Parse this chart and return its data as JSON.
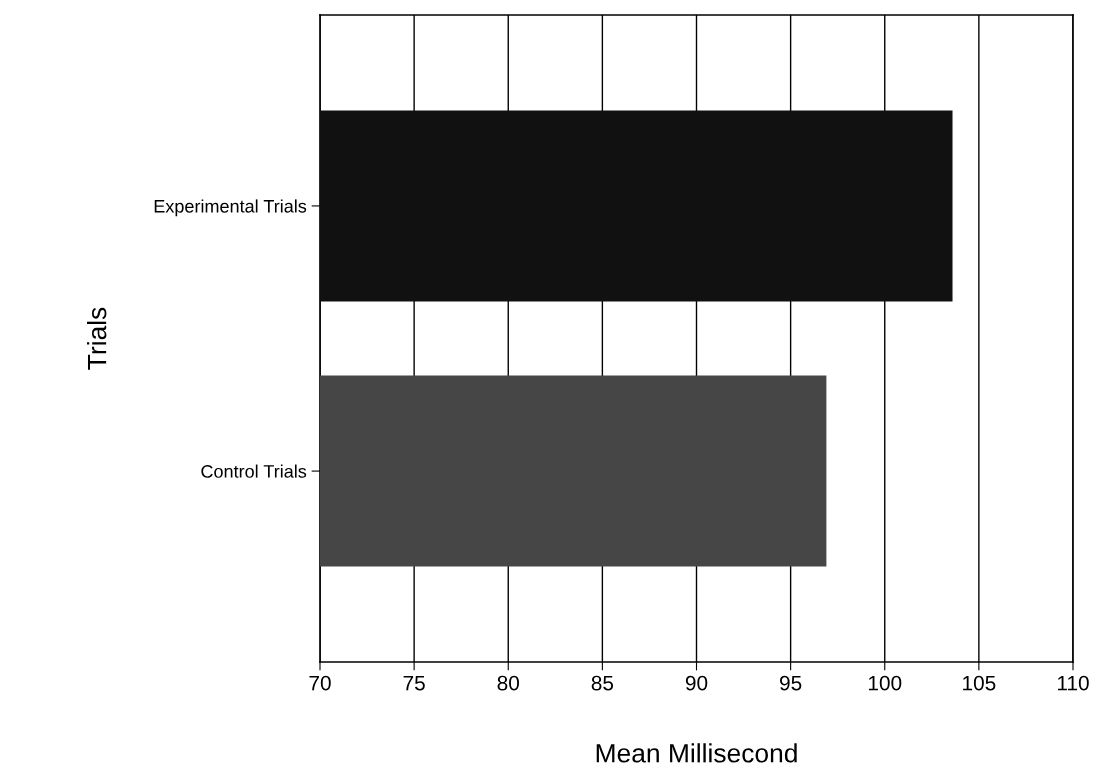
{
  "chart_data": {
    "type": "bar",
    "orientation": "horizontal",
    "categories": [
      "Experimental Trials",
      "Control Trials"
    ],
    "values": [
      103.6,
      96.9
    ],
    "colors": [
      "#111111",
      "#464646"
    ],
    "xlabel": "Mean Millisecond",
    "ylabel": "Trials",
    "xlim": [
      70,
      110
    ],
    "xticks": [
      70,
      75,
      80,
      85,
      90,
      95,
      100,
      105,
      110
    ],
    "grid": "x",
    "legend": false
  }
}
